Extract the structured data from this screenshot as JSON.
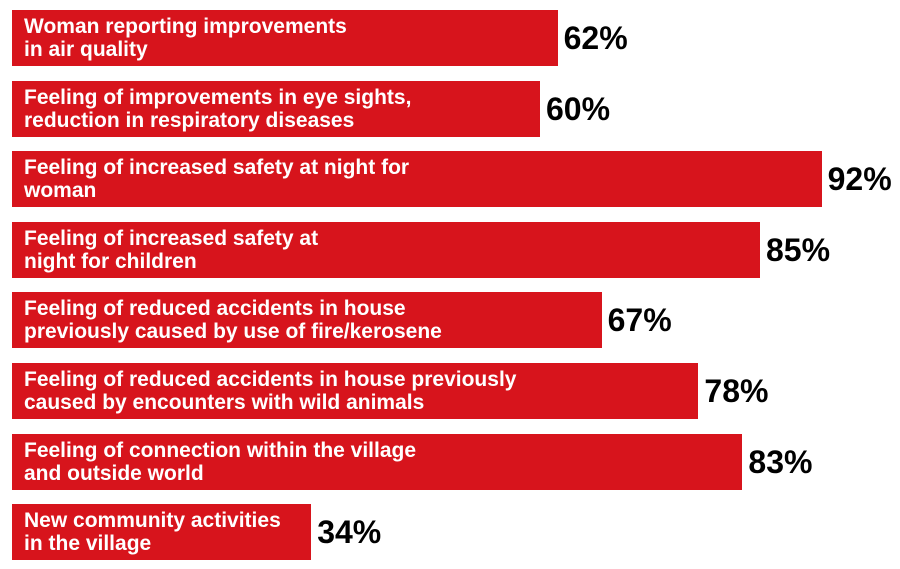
{
  "chart_data": {
    "type": "bar",
    "orientation": "horizontal",
    "bar_color": "#d7141c",
    "categories": [
      "Woman reporting improvements\nin air quality",
      "Feeling of improvements in eye sights,\nreduction in respiratory diseases",
      "Feeling of increased safety at night for\nwoman",
      "Feeling of increased safety at\nnight for children",
      "Feeling of reduced accidents in house\npreviously caused by use of fire/kerosene",
      "Feeling of reduced accidents in house previously\ncaused by encounters with wild animals",
      "Feeling of connection within the village\nand outside world",
      "New community activities\nin the village"
    ],
    "values": [
      62,
      60,
      92,
      85,
      67,
      78,
      83,
      34
    ],
    "value_labels": [
      "62%",
      "60%",
      "92%",
      "85%",
      "67%",
      "78%",
      "83%",
      "34%"
    ],
    "xlim": [
      0,
      100
    ]
  }
}
